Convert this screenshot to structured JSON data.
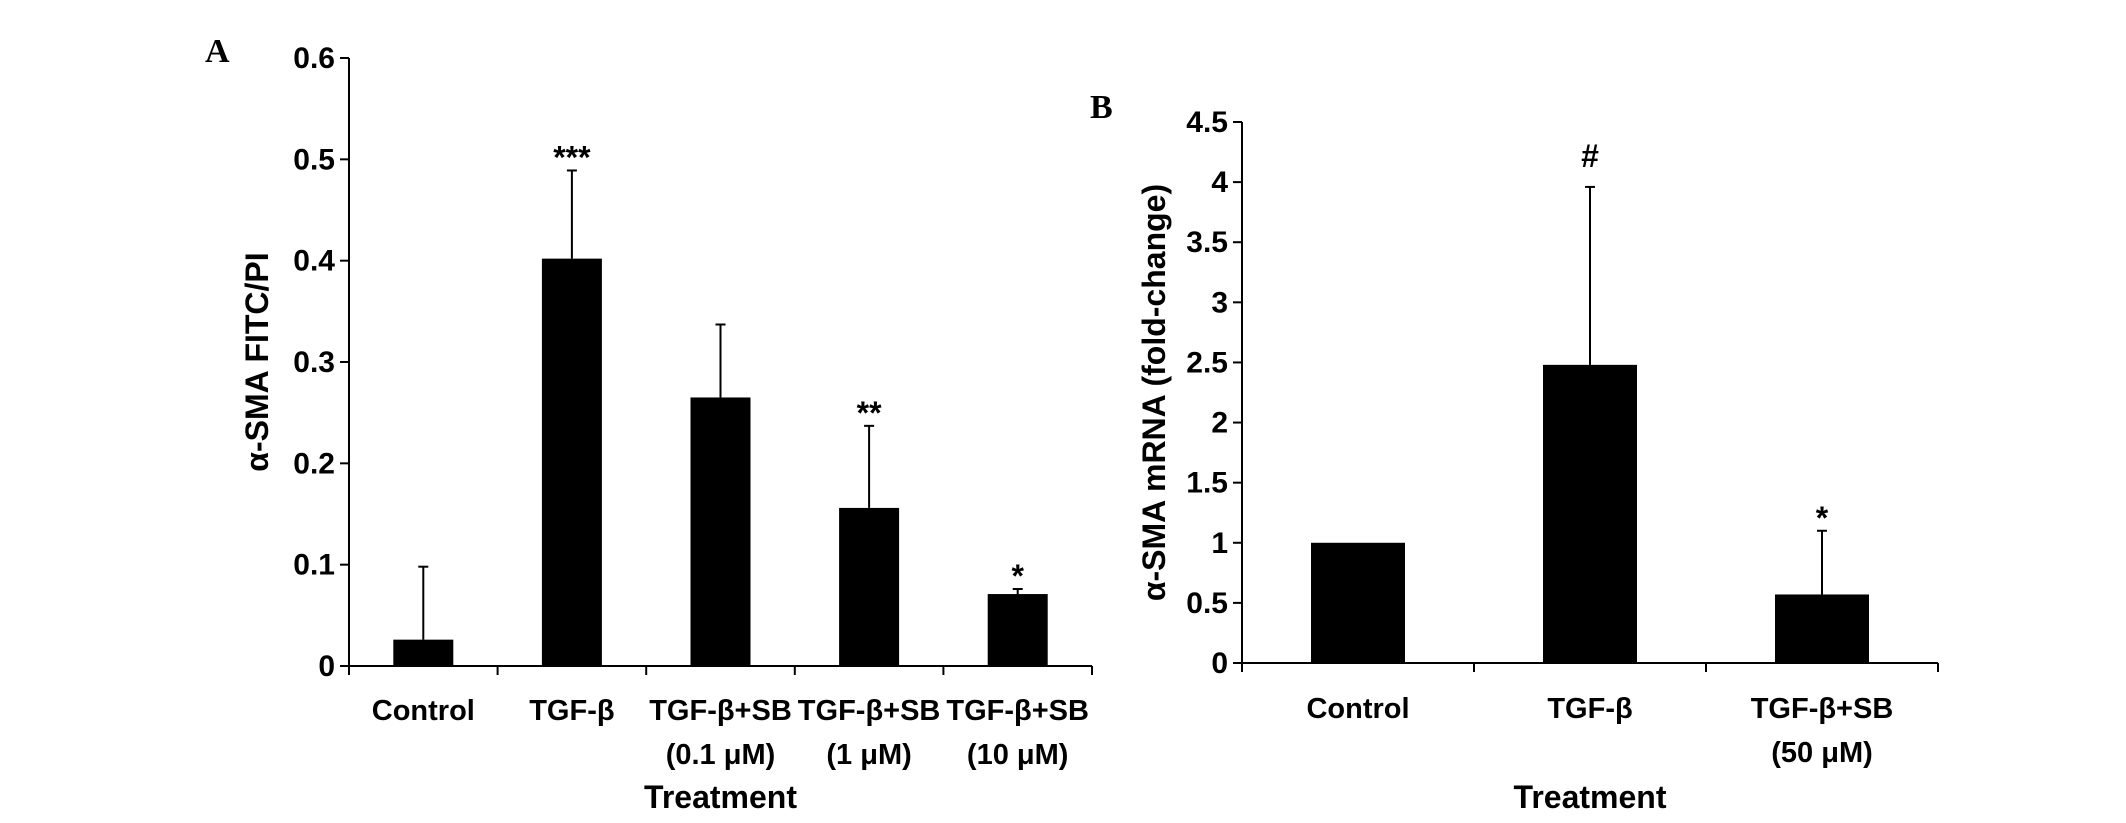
{
  "chart_data": [
    {
      "type": "bar",
      "panel_label": "A",
      "ylabel": "α-SMA FITC/PI",
      "xlabel": "Treatment",
      "ylim": [
        0,
        0.6
      ],
      "yticks": [
        "0",
        "0.1",
        "0.2",
        "0.3",
        "0.4",
        "0.5",
        "0.6"
      ],
      "categories": [
        [
          "Control"
        ],
        [
          "TGF-β"
        ],
        [
          "TGF-β+SB",
          "(0.1 μM)"
        ],
        [
          "TGF-β+SB",
          "(1 μM)"
        ],
        [
          "TGF-β+SB",
          "(10 μM)"
        ]
      ],
      "values": [
        0.026,
        0.402,
        0.265,
        0.156,
        0.071
      ],
      "error": [
        0.072,
        0.087,
        0.072,
        0.081,
        0.005
      ],
      "annotations": [
        "",
        "***",
        "",
        "**",
        "*"
      ],
      "bar_color": "#000000",
      "grid": false
    },
    {
      "type": "bar",
      "panel_label": "B",
      "ylabel": "α-SMA mRNA (fold-change)",
      "xlabel": "Treatment",
      "ylim": [
        0,
        4.5
      ],
      "yticks": [
        "0",
        "0.5",
        "1",
        "1.5",
        "2",
        "2.5",
        "3",
        "3.5",
        "4",
        "4.5"
      ],
      "categories": [
        [
          "Control"
        ],
        [
          "TGF-β"
        ],
        [
          "TGF-β+SB",
          "(50 μM)"
        ]
      ],
      "values": [
        1.0,
        2.48,
        0.57
      ],
      "error": [
        0,
        1.48,
        0.53
      ],
      "annotations": [
        "",
        "#",
        "*"
      ],
      "bar_color": "#000000",
      "grid": false
    }
  ]
}
